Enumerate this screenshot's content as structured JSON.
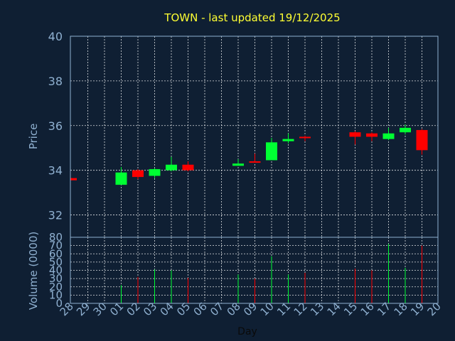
{
  "chart_data": {
    "type": "candlestick",
    "title": "TOWN - last updated 19/12/2025",
    "price_panel": {
      "ylabel": "Price",
      "ylim": [
        31,
        40
      ],
      "yticks": [
        32,
        34,
        36,
        38,
        40
      ],
      "grid": true
    },
    "volume_panel": {
      "ylabel": "Volume (0000)",
      "ylim": [
        0,
        80
      ],
      "yticks": [
        0,
        10,
        20,
        30,
        40,
        50,
        60,
        70,
        80
      ],
      "grid": true
    },
    "xlabel": "Day",
    "x_tick_labels": [
      "28",
      "29",
      "30",
      "01",
      "02",
      "03",
      "04",
      "05",
      "06",
      "07",
      "08",
      "09",
      "10",
      "11",
      "12",
      "13",
      "14",
      "15",
      "16",
      "17",
      "18",
      "19",
      "20"
    ],
    "colors": {
      "up": "#00ff33",
      "down": "#ff0000",
      "title": "#ffff33",
      "axis_text": "#8fb0d0",
      "background": "#0f1f33"
    },
    "candles": [
      {
        "x": 0,
        "open": 33.65,
        "high": 33.65,
        "low": 33.55,
        "close": 33.55,
        "volume": 0
      },
      {
        "x": 3,
        "open": 33.35,
        "high": 34.15,
        "low": 33.35,
        "close": 33.9,
        "volume": 22
      },
      {
        "x": 4,
        "open": 34.0,
        "high": 34.05,
        "low": 33.6,
        "close": 33.7,
        "volume": 32
      },
      {
        "x": 5,
        "open": 33.75,
        "high": 34.1,
        "low": 33.65,
        "close": 34.05,
        "volume": 41
      },
      {
        "x": 6,
        "open": 34.0,
        "high": 34.6,
        "low": 33.95,
        "close": 34.25,
        "volume": 40
      },
      {
        "x": 7,
        "open": 34.25,
        "high": 34.4,
        "low": 33.95,
        "close": 34.0,
        "volume": 31
      },
      {
        "x": 10,
        "open": 34.2,
        "high": 34.5,
        "low": 34.2,
        "close": 34.3,
        "volume": 35
      },
      {
        "x": 11,
        "open": 34.4,
        "high": 34.75,
        "low": 34.35,
        "close": 34.38,
        "volume": 30
      },
      {
        "x": 12,
        "open": 34.45,
        "high": 35.45,
        "low": 34.45,
        "close": 35.25,
        "volume": 57
      },
      {
        "x": 13,
        "open": 35.3,
        "high": 35.65,
        "low": 35.2,
        "close": 35.4,
        "volume": 35
      },
      {
        "x": 14,
        "open": 35.5,
        "high": 35.55,
        "low": 35.3,
        "close": 35.45,
        "volume": 37
      },
      {
        "x": 17,
        "open": 35.7,
        "high": 35.75,
        "low": 35.15,
        "close": 35.5,
        "volume": 42
      },
      {
        "x": 18,
        "open": 35.65,
        "high": 35.7,
        "low": 35.3,
        "close": 35.5,
        "volume": 40
      },
      {
        "x": 19,
        "open": 35.4,
        "high": 35.9,
        "low": 35.35,
        "close": 35.65,
        "volume": 72
      },
      {
        "x": 20,
        "open": 35.7,
        "high": 36.05,
        "low": 35.6,
        "close": 35.9,
        "volume": 43
      },
      {
        "x": 21,
        "open": 35.8,
        "high": 35.85,
        "low": 34.7,
        "close": 34.9,
        "volume": 70
      }
    ]
  }
}
